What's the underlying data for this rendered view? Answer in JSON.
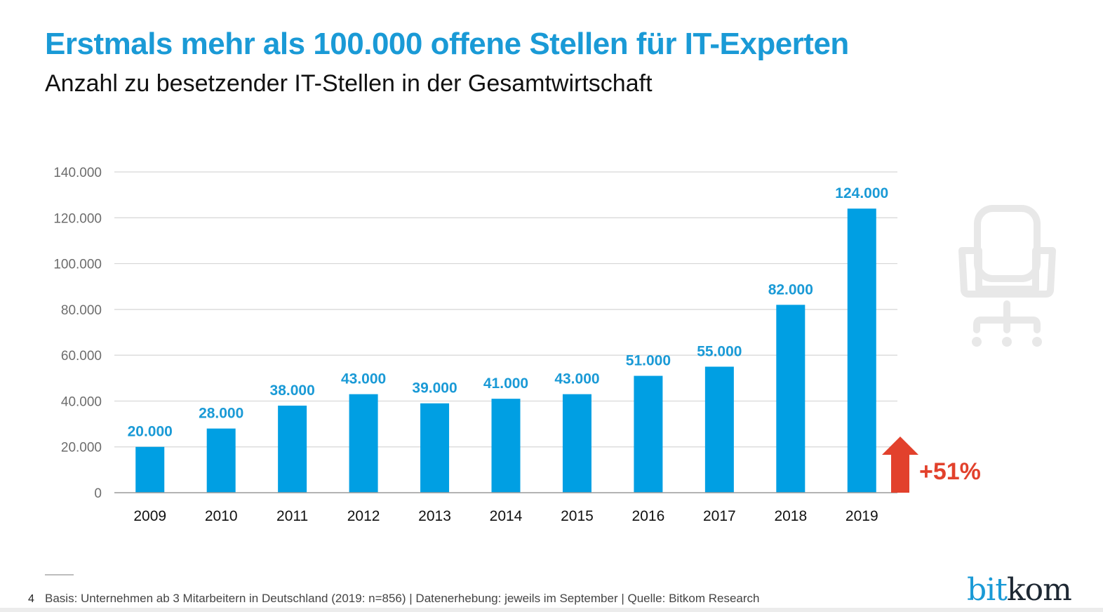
{
  "header": {
    "title": "Erstmals mehr als 100.000 offene Stellen für IT-Experten",
    "subtitle": "Anzahl zu besetzender IT-Stellen in der Gesamtwirtschaft"
  },
  "colors": {
    "bar": "#009fe3",
    "label": "#1a9ad6",
    "accent_red": "#e2412c",
    "icon_gray": "#e8e8e8"
  },
  "chart_data": {
    "type": "bar",
    "title": "Erstmals mehr als 100.000 offene Stellen für IT-Experten",
    "subtitle": "Anzahl zu besetzender IT-Stellen in der Gesamtwirtschaft",
    "xlabel": "",
    "ylabel": "",
    "categories": [
      "2009",
      "2010",
      "2011",
      "2012",
      "2013",
      "2014",
      "2015",
      "2016",
      "2017",
      "2018",
      "2019"
    ],
    "values": [
      20000,
      28000,
      38000,
      43000,
      39000,
      41000,
      43000,
      51000,
      55000,
      82000,
      124000
    ],
    "data_labels": [
      "20.000",
      "28.000",
      "38.000",
      "43.000",
      "39.000",
      "41.000",
      "43.000",
      "51.000",
      "55.000",
      "82.000",
      "124.000"
    ],
    "ylim": [
      0,
      140000
    ],
    "yticks": [
      0,
      20000,
      40000,
      60000,
      80000,
      100000,
      120000,
      140000
    ],
    "ytick_labels": [
      "0",
      "20.000",
      "40.000",
      "60.000",
      "80.000",
      "100.000",
      "120.000",
      "140.000"
    ],
    "grid": true,
    "legend": "none",
    "annotation": {
      "text": "+51%",
      "icon": "up-arrow-icon",
      "refers_to": "2019 vs 2018"
    }
  },
  "decoration": {
    "icon": "office-chair-icon"
  },
  "footer": {
    "page_number": "4",
    "note": "Basis: Unternehmen ab 3 Mitarbeitern in Deutschland (2019: n=856) | Datenerhebung: jeweils im September | Quelle: Bitkom Research",
    "logo_part1": "bit",
    "logo_part2": "kom"
  }
}
